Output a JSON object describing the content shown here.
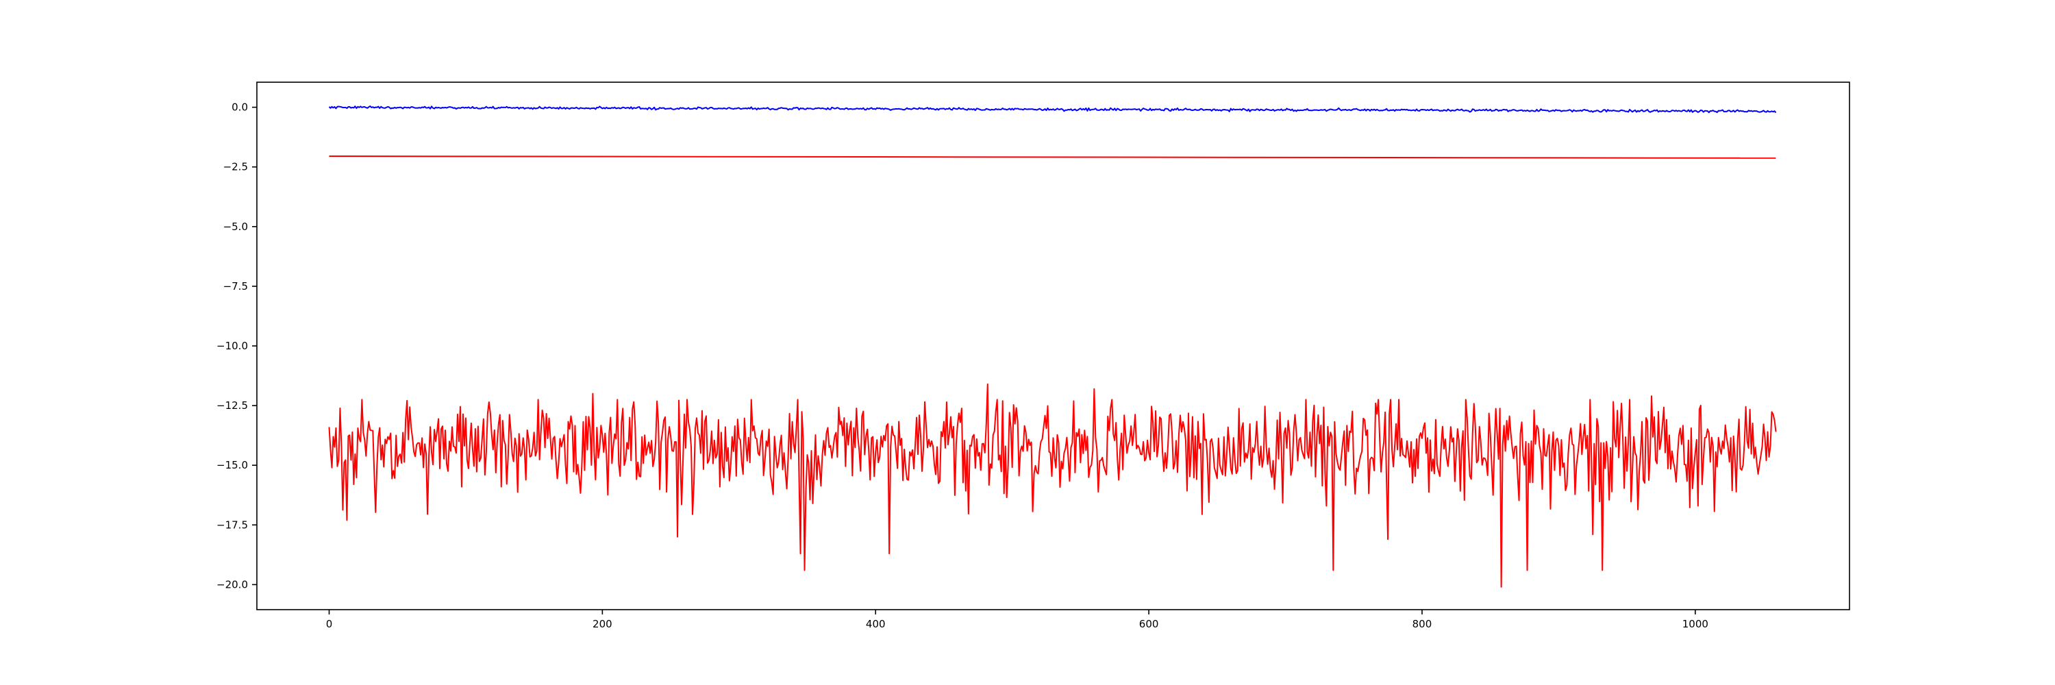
{
  "chart_data": {
    "type": "line",
    "title": "",
    "xlabel": "",
    "ylabel": "",
    "xlim": [
      -52.9,
      1112.9
    ],
    "ylim": [
      -21.05,
      1.05
    ],
    "x_ticks": [
      0,
      200,
      400,
      600,
      800,
      1000
    ],
    "y_ticks": [
      0.0,
      -2.5,
      -5.0,
      -7.5,
      -10.0,
      -12.5,
      -15.0,
      -17.5,
      -20.0
    ],
    "x_tick_labels": [
      "0",
      "200",
      "400",
      "600",
      "800",
      "1000"
    ],
    "y_tick_labels": [
      "0.0",
      "−2.5",
      "−5.0",
      "−7.5",
      "−10.0",
      "−12.5",
      "−15.0",
      "−17.5",
      "−20.0"
    ],
    "grid": false,
    "legend": false,
    "x_range": [
      0,
      1059
    ],
    "n_points": 1060,
    "series": [
      {
        "color": "#0000ff",
        "style": "noisy drift",
        "x": [
          0,
          100,
          200,
          300,
          400,
          500,
          600,
          700,
          800,
          900,
          1000,
          1059
        ],
        "y": [
          0.0,
          -0.02,
          -0.04,
          -0.05,
          -0.06,
          -0.08,
          -0.1,
          -0.11,
          -0.12,
          -0.14,
          -0.16,
          -0.18
        ],
        "noise_amplitude": 0.05
      },
      {
        "color": "#ff0000",
        "style": "smooth",
        "x": [
          0,
          1059
        ],
        "y": [
          -2.05,
          -2.13
        ]
      },
      {
        "color": "#ff0000",
        "style": "noisy",
        "mean": -14.2,
        "typical_range": [
          -16.5,
          -12.5
        ],
        "min": -20.1,
        "max": -11.6,
        "spikes": [
          {
            "x": 0,
            "y": -13.4
          },
          {
            "x": 2,
            "y": -15.1
          },
          {
            "x": 13,
            "y": -17.3
          },
          {
            "x": 193,
            "y": -12.0
          },
          {
            "x": 255,
            "y": -18.0
          },
          {
            "x": 345,
            "y": -18.7
          },
          {
            "x": 348,
            "y": -19.4
          },
          {
            "x": 410,
            "y": -18.7
          },
          {
            "x": 482,
            "y": -11.6
          },
          {
            "x": 560,
            "y": -11.8
          },
          {
            "x": 735,
            "y": -19.4
          },
          {
            "x": 775,
            "y": -18.1
          },
          {
            "x": 858,
            "y": -20.1
          },
          {
            "x": 877,
            "y": -19.4
          },
          {
            "x": 932,
            "y": -19.4
          },
          {
            "x": 968,
            "y": -12.1
          },
          {
            "x": 1059,
            "y": -13.6
          }
        ]
      }
    ]
  }
}
